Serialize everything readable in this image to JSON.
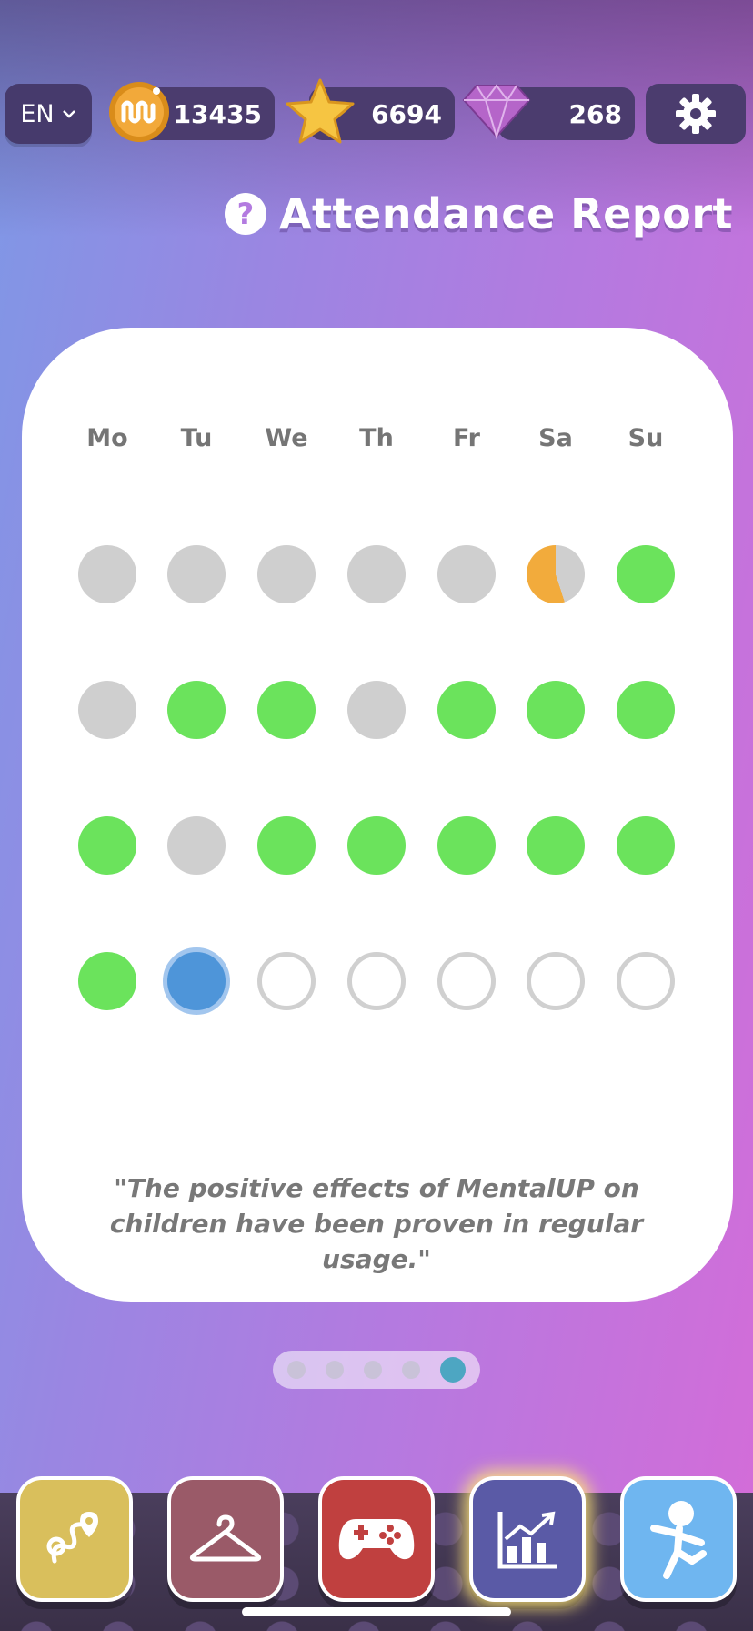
{
  "header": {
    "language": "EN",
    "coins": "13435",
    "stars": "6694",
    "gems": "268"
  },
  "title": "Attendance Report",
  "help_symbol": "?",
  "calendar": {
    "days": [
      "Mo",
      "Tu",
      "We",
      "Th",
      "Fr",
      "Sa",
      "Su"
    ],
    "weeks": [
      [
        "missed",
        "missed",
        "missed",
        "missed",
        "missed",
        "partial",
        "attended"
      ],
      [
        "missed",
        "attended",
        "attended",
        "missed",
        "attended",
        "attended",
        "attended"
      ],
      [
        "attended",
        "missed",
        "attended",
        "attended",
        "attended",
        "attended",
        "attended"
      ],
      [
        "attended",
        "today",
        "upcoming",
        "upcoming",
        "upcoming",
        "upcoming",
        "upcoming"
      ]
    ],
    "partial_fraction": 0.55
  },
  "quote": "\"The positive effects of MentalUP on children have been proven in regular usage.\"",
  "pager": {
    "pages": 5,
    "active": 5
  },
  "nav": [
    {
      "icon": "map-route-icon",
      "color": "#d9bf5c"
    },
    {
      "icon": "hanger-icon",
      "color": "#9a5a68"
    },
    {
      "icon": "gamepad-icon",
      "color": "#c0403f"
    },
    {
      "icon": "chart-icon",
      "color": "#5a5aa6"
    },
    {
      "icon": "exercise-figure-icon",
      "color": "#6fb6f0"
    }
  ],
  "colors": {
    "attended": "#6be35c",
    "missed": "#cfcfcf",
    "partial": "#f2ab3c",
    "today": "#4e95d9"
  }
}
